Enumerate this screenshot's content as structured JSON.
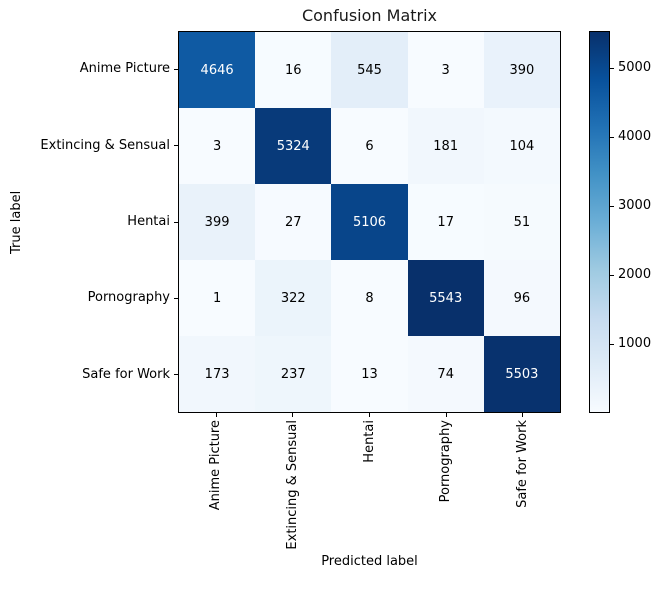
{
  "chart_data": {
    "type": "heatmap",
    "title": "Confusion Matrix",
    "xlabel": "Predicted label",
    "ylabel": "True label",
    "categories": [
      "Anime Picture",
      "Extincing & Sensual",
      "Hentai",
      "Pornography",
      "Safe for Work"
    ],
    "matrix": [
      [
        4646,
        16,
        545,
        3,
        390
      ],
      [
        3,
        5324,
        6,
        181,
        104
      ],
      [
        399,
        27,
        5106,
        17,
        51
      ],
      [
        1,
        322,
        8,
        5543,
        96
      ],
      [
        173,
        237,
        13,
        74,
        5503
      ]
    ],
    "vmin": 1,
    "vmax": 5543,
    "colorbar_ticks": [
      1000,
      2000,
      3000,
      4000,
      5000
    ],
    "colormap": "Blues",
    "legend_position": "right-colorbar",
    "grid": false
  },
  "colors": {
    "background": "#ffffff",
    "text": "#000000",
    "cell_text_light": "#ffffff",
    "spine": "#000000",
    "colormap_stops": [
      "#f7fbff",
      "#deebf7",
      "#c6dbef",
      "#9ecae1",
      "#6baed6",
      "#4292c6",
      "#2171b5",
      "#08519c",
      "#08306b"
    ]
  }
}
